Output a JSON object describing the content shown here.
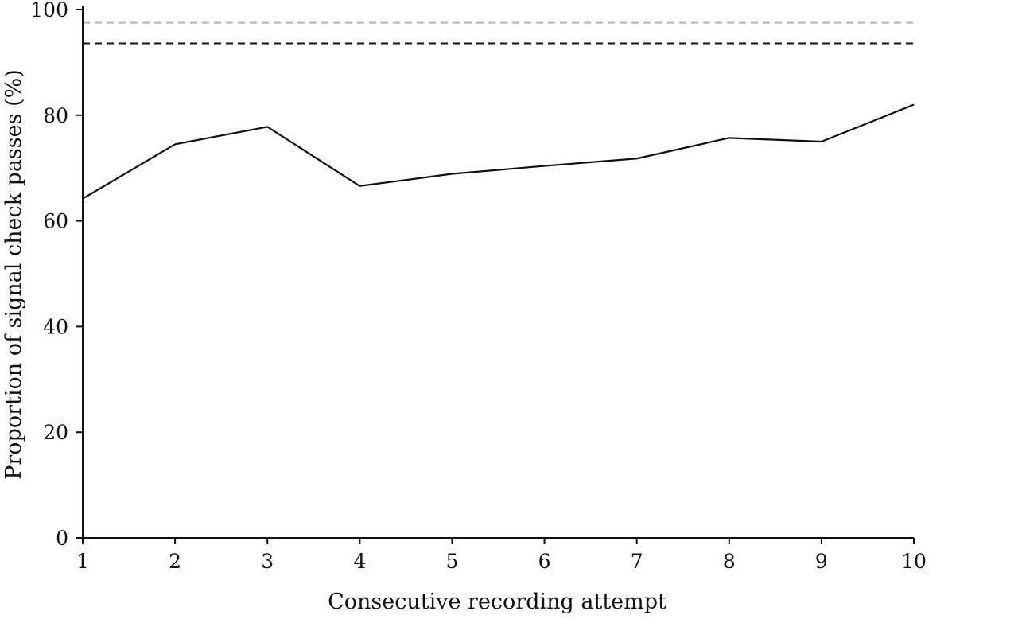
{
  "chart_data": {
    "type": "line",
    "xlabel": "Consecutive recording attempt",
    "ylabel": "Proportion of signal check passes (%)",
    "x": [
      1,
      2,
      3,
      4,
      5,
      6,
      7,
      8,
      9,
      10
    ],
    "x_tick_labels": [
      "1",
      "2",
      "3",
      "4",
      "5",
      "6",
      "7",
      "8",
      "9",
      "10"
    ],
    "y_ticks": [
      0,
      20,
      40,
      60,
      80,
      100
    ],
    "y_tick_labels": [
      "0",
      "20",
      "40",
      "60",
      "80",
      "100"
    ],
    "xlim": [
      1,
      10
    ],
    "ylim": [
      0,
      100
    ],
    "grid": false,
    "series": [
      {
        "values": [
          64.2,
          74.5,
          77.8,
          66.6,
          68.9,
          70.4,
          71.8,
          75.7,
          75.0,
          82.0
        ],
        "color": "#111111",
        "style": "solid"
      }
    ],
    "reference_lines": [
      {
        "y": 97.5,
        "color": "#b3b3b3",
        "style": "dashed"
      },
      {
        "y": 93.6,
        "color": "#111111",
        "style": "dashed"
      }
    ]
  }
}
